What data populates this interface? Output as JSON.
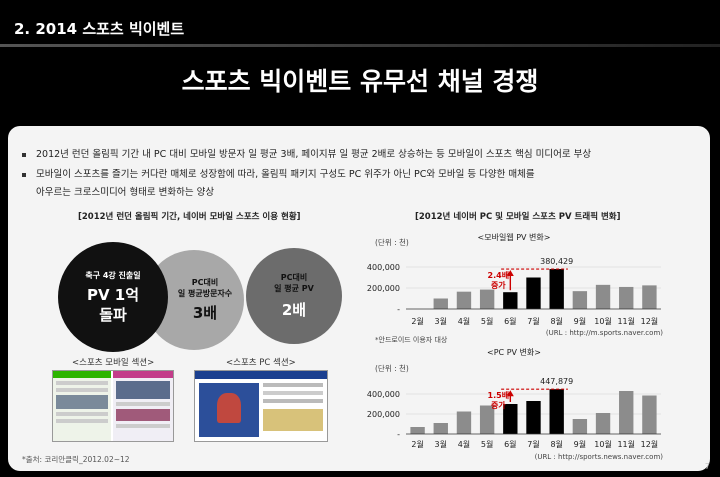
{
  "section_title": "2. 2014 스포츠 빅이벤트",
  "main_title": "스포츠 빅이벤트 유무선 채널 경쟁",
  "bullets": [
    "2012년 런던 올림픽 기간 내 PC 대비 모바일 방문자 일 평균 3배, 페이지뷰 일 평균 2배로 상승하는 등 모바일이 스포츠 핵심 미디어로 부상",
    "모바일이 스포츠를 즐기는 커다란 매체로 성장함에 따라, 올림픽 패키지 구성도 PC 위주가 아닌 PC와 모바일 등 다양한 매체를",
    "아우르는 크로스미디어 형태로 변화하는 양상"
  ],
  "left_caption": "[2012년 런던 올림픽 기간, 네이버 모바일 스포츠 이용 현황]",
  "right_caption": "[2012년 네이버 PC 및 모바일 스포츠 PV 트래픽 변화]",
  "circles": {
    "big": {
      "line1": "축구 4강 진출일",
      "line2": "PV 1억",
      "line3": "돌파"
    },
    "mid": {
      "line1": "PC대비",
      "line2": "일 평균방문자수",
      "line3": "3배"
    },
    "right": {
      "line1": "PC대비",
      "line2": "일 평균 PV",
      "line3": "2배"
    }
  },
  "mobile_section_label": "<스포츠 모바일 섹션>",
  "pc_section_label": "<스포츠 PC 섹션>",
  "source": "*출처: 코리안클릭_2012.02~12",
  "page_number": "7",
  "colors": {
    "bar_gray": "#8c8c8c",
    "bar_black": "#000000",
    "highlight_red": "#cc0000"
  },
  "chart_data": [
    {
      "type": "bar",
      "title": "<모바일웹 PV 변화>",
      "unit": "(단위 : 천)",
      "categories": [
        "2월",
        "3월",
        "4월",
        "5월",
        "6월",
        "7월",
        "8월",
        "9월",
        "10월",
        "11월",
        "12월"
      ],
      "values": [
        0,
        100000,
        165000,
        185000,
        160000,
        300000,
        380429,
        170000,
        230000,
        210000,
        225000
      ],
      "black_indices": [
        4,
        5,
        6
      ],
      "yticks": [
        "400,000",
        "200,000",
        "-"
      ],
      "ylim": [
        0,
        400000
      ],
      "data_label": "380,429",
      "annotation_line1": "2.4배",
      "annotation_line2": "증가",
      "source_url": "(URL : http://m.sports.naver.com)"
    },
    {
      "type": "bar",
      "title": "<PC PV 변화>",
      "unit": "(단위 : 천)",
      "categories": [
        "2월",
        "3월",
        "4월",
        "5월",
        "6월",
        "7월",
        "8월",
        "9월",
        "10월",
        "11월",
        "12월"
      ],
      "values": [
        70000,
        110000,
        225000,
        285000,
        300000,
        330000,
        447879,
        150000,
        210000,
        430000,
        385000
      ],
      "black_indices": [
        4,
        5,
        6
      ],
      "yticks": [
        "400,000",
        "200,000",
        "-"
      ],
      "ylim": [
        0,
        500000
      ],
      "data_label": "447,879",
      "annotation_line1": "1.5배",
      "annotation_line2": "증가",
      "source_url": "(URL : http://sports.news.naver.com)"
    }
  ],
  "mobile_note": "*안드로이드 이용자 대상"
}
